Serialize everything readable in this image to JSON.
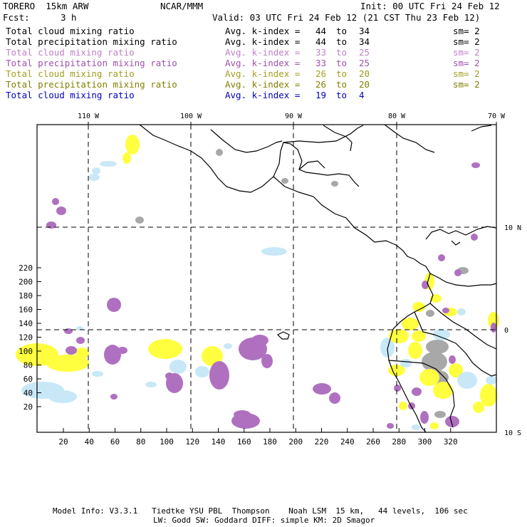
{
  "header": {
    "model": "TORERO  15km ARW",
    "center": "NCAR/MMM",
    "init": "Init: 00 UTC Fri 24 Feb 12",
    "fcst_label": "Fcst:",
    "fcst_value": "3 h",
    "valid": "Valid: 03 UTC Fri 24 Feb 12 (21 CST Thu 23 Feb 12)"
  },
  "legend": [
    {
      "field": "Total cloud mixing ratio",
      "avg_label": "Avg. k-index =",
      "from": "44",
      "to_word": "to",
      "to": "34",
      "sm": "sm= 2",
      "color": "#000000"
    },
    {
      "field": "Total precipitation mixing ratio",
      "avg_label": "Avg. k-index =",
      "from": "44",
      "to_word": "to",
      "to": "34",
      "sm": "sm= 2",
      "color": "#000000"
    },
    {
      "field": "Total cloud mixing ratio",
      "avg_label": "Avg. k-index =",
      "from": "33",
      "to_word": "to",
      "to": "25",
      "sm": "sm= 2",
      "color": "#c080c8"
    },
    {
      "field": "Total precipitation mixing ratio",
      "avg_label": "Avg. k-index =",
      "from": "33",
      "to_word": "to",
      "to": "25",
      "sm": "sm= 2",
      "color": "#a050b0"
    },
    {
      "field": "Total cloud mixing ratio",
      "avg_label": "Avg. k-index =",
      "from": "26",
      "to_word": "to",
      "to": "20",
      "sm": "sm= 2",
      "color": "#a0a020"
    },
    {
      "field": "Total precipitation mixing ratio",
      "avg_label": "Avg. k-index =",
      "from": "26",
      "to_word": "to",
      "to": "20",
      "sm": "sm= 2",
      "color": "#808000"
    },
    {
      "field": "Total cloud mixing ratio",
      "avg_label": "Avg. k-index =",
      "from": "19",
      "to_word": "to",
      "to": "4",
      "sm": "",
      "color": "#0000c0"
    }
  ],
  "axes": {
    "lon_labels": [
      "110 W",
      "100 W",
      "90 W",
      "80 W",
      "70 W"
    ],
    "lat_labels": [
      "10 N",
      "0",
      "10 S"
    ],
    "x_ticks": [
      "20",
      "40",
      "60",
      "80",
      "100",
      "120",
      "140",
      "160",
      "180",
      "200",
      "220",
      "240",
      "260",
      "280",
      "300",
      "320"
    ],
    "y_ticks": [
      "20",
      "40",
      "60",
      "80",
      "100",
      "120",
      "140",
      "160",
      "180",
      "200",
      "220"
    ]
  },
  "footer": {
    "line1": "Model Info: V3.3.1   Tiedtke YSU PBL  Thompson    Noah LSM  15 km,   44 levels,  106 sec",
    "line2": "LW: Godd SW: Goddard DIFF: simple KM: 2D Smagor"
  },
  "colors": {
    "purple": "#b070c0",
    "yellow": "#ffff40",
    "light_blue": "#c8e8f8",
    "gray": "#a8a8a8",
    "coast": "#000000"
  }
}
